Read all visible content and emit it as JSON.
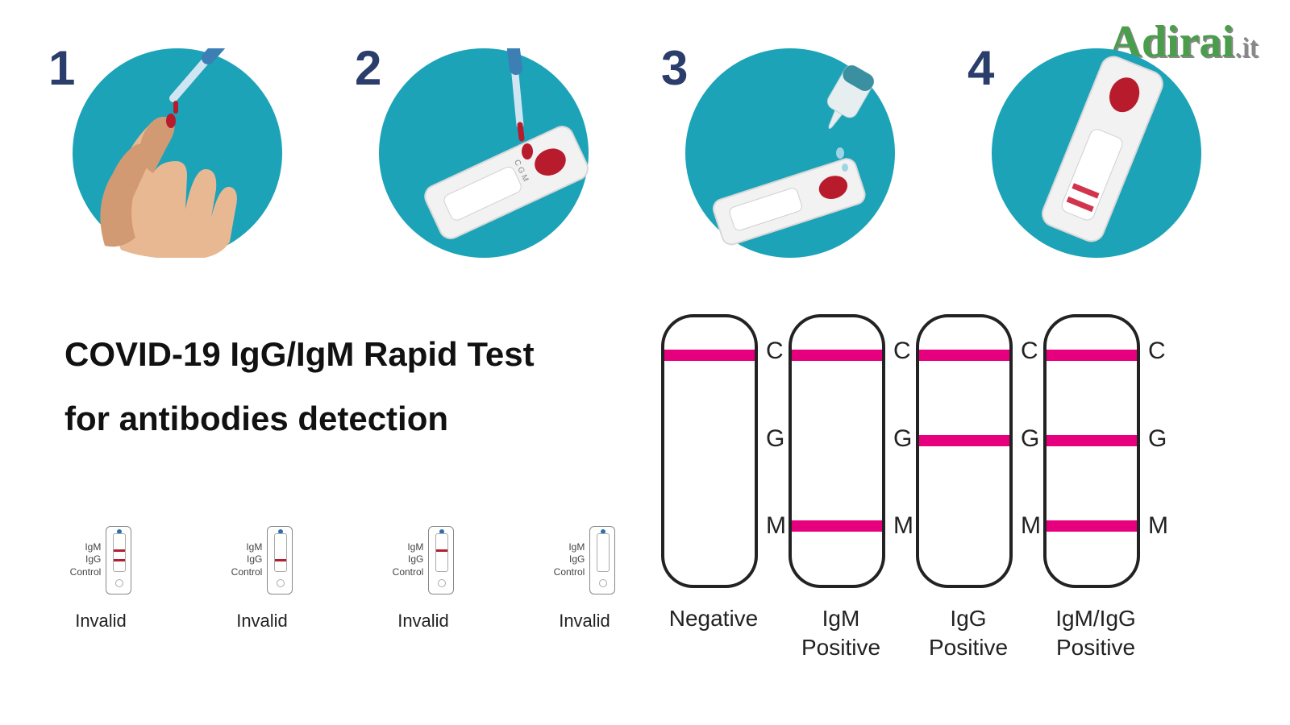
{
  "logo": {
    "main": "Adirai",
    "suffix": ".it",
    "color": "#4a9d4a",
    "suffix_color": "#888888"
  },
  "circle_color": "#1ca3b8",
  "step_number_color": "#2b3d6b",
  "line_color": "#e6007e",
  "steps": [
    {
      "num": "1"
    },
    {
      "num": "2"
    },
    {
      "num": "3"
    },
    {
      "num": "4"
    }
  ],
  "title_lines": [
    "COVID-19 IgG/IgM Rapid Test",
    "for antibodies detection"
  ],
  "invalid": {
    "side_labels": [
      "IgM",
      "IgG",
      "Control"
    ],
    "label": "Invalid",
    "items": [
      {
        "lines": [
          {
            "pos": 18
          },
          {
            "pos": 30
          }
        ]
      },
      {
        "lines": [
          {
            "pos": 30
          }
        ]
      },
      {
        "lines": [
          {
            "pos": 18
          }
        ]
      },
      {
        "lines": []
      }
    ]
  },
  "results": {
    "marker_labels": [
      "C",
      "G",
      "M"
    ],
    "marker_positions_pct": [
      12,
      44,
      76
    ],
    "items": [
      {
        "label": "Negative",
        "lines": [
          "C"
        ]
      },
      {
        "label": "IgM\nPositive",
        "lines": [
          "C",
          "M"
        ]
      },
      {
        "label": "IgG\nPositive",
        "lines": [
          "C",
          "G"
        ]
      },
      {
        "label": "IgM/IgG\nPositive",
        "lines": [
          "C",
          "G",
          "M"
        ]
      }
    ]
  },
  "illustration_colors": {
    "skin": "#e8b893",
    "skin_shadow": "#d29a72",
    "blood": "#b81c2c",
    "cassette_body": "#f2f2f2",
    "cassette_shadow": "#d8d8d8",
    "pipette": "#3b7fb5",
    "pipette_tip": "#cfe6f2",
    "buffer_cap": "#3a8fa0",
    "buffer_body": "#e6eef0"
  }
}
